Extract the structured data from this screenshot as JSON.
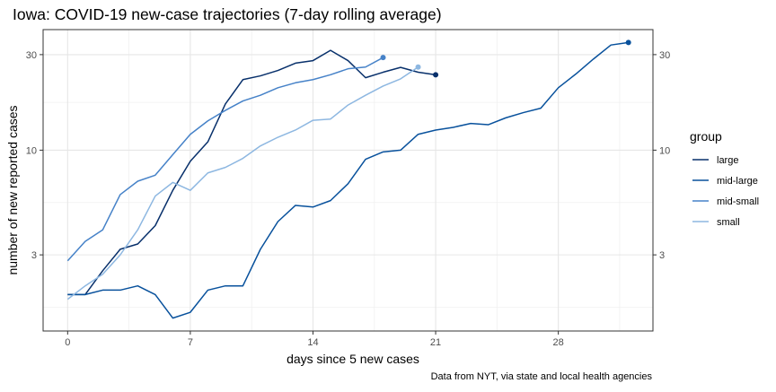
{
  "chart_data": {
    "type": "line",
    "title": "Iowa: COVID-19 new-case trajectories (7-day rolling average)",
    "xlabel": "days since 5 new cases",
    "ylabel": "number of new reported cases",
    "caption": "Data from NYT, via state and local health agencies",
    "y_scale": "log",
    "xlim": [
      -1.4,
      33.4
    ],
    "ylim": [
      1.25,
      40
    ],
    "x_ticks": [
      0,
      7,
      14,
      21,
      28
    ],
    "y_ticks": [
      3,
      10,
      30
    ],
    "grid": true,
    "secondary_y_axis": true,
    "legend": {
      "title": "group",
      "placement": "right"
    },
    "series": [
      {
        "name": "large",
        "color": "#08306b",
        "x": [
          0,
          1,
          2,
          3,
          4,
          5,
          6,
          7,
          8,
          9,
          10,
          11,
          12,
          13,
          14,
          15,
          16,
          17,
          18,
          19,
          20,
          21
        ],
        "y": [
          1.9,
          1.9,
          2.5,
          3.2,
          3.4,
          4.2,
          6.3,
          8.8,
          11.0,
          17.0,
          22.5,
          23.5,
          25.0,
          27.2,
          28.0,
          31.5,
          28.0,
          23.0,
          24.5,
          25.9,
          24.5,
          23.8
        ]
      },
      {
        "name": "mid-large",
        "color": "#08519c",
        "x": [
          0,
          1,
          2,
          3,
          4,
          5,
          6,
          7,
          8,
          9,
          10,
          11,
          12,
          13,
          14,
          15,
          16,
          17,
          18,
          19,
          20,
          21,
          22,
          23,
          24,
          25,
          26,
          27,
          28,
          29,
          30,
          31,
          32
        ],
        "y": [
          1.9,
          1.9,
          2.0,
          2.0,
          2.1,
          1.9,
          1.45,
          1.55,
          2.0,
          2.1,
          2.1,
          3.2,
          4.4,
          5.3,
          5.2,
          5.6,
          6.8,
          9.0,
          9.8,
          10.0,
          12.0,
          12.6,
          13.0,
          13.6,
          13.4,
          14.5,
          15.4,
          16.2,
          20.5,
          24.0,
          28.5,
          33.5,
          34.5
        ]
      },
      {
        "name": "mid-small",
        "color": "#4682c8",
        "x": [
          0,
          1,
          2,
          3,
          4,
          5,
          6,
          7,
          8,
          9,
          10,
          11,
          12,
          13,
          14,
          15,
          16,
          17,
          18
        ],
        "y": [
          2.8,
          3.5,
          4.0,
          6.0,
          7.0,
          7.5,
          9.5,
          12.0,
          14.0,
          15.8,
          17.6,
          18.8,
          20.5,
          21.7,
          22.5,
          23.8,
          25.5,
          26.0,
          29.0
        ]
      },
      {
        "name": "small",
        "color": "#8db7e1",
        "x": [
          0,
          1,
          2,
          3,
          4,
          5,
          6,
          7,
          8,
          9,
          10,
          11,
          12,
          13,
          14,
          15,
          16,
          17,
          18,
          19,
          20
        ],
        "y": [
          1.8,
          2.1,
          2.4,
          3.0,
          4.0,
          5.9,
          6.9,
          6.3,
          7.7,
          8.2,
          9.1,
          10.5,
          11.6,
          12.6,
          14.1,
          14.3,
          16.8,
          18.8,
          20.9,
          22.7,
          26.0
        ]
      }
    ]
  }
}
